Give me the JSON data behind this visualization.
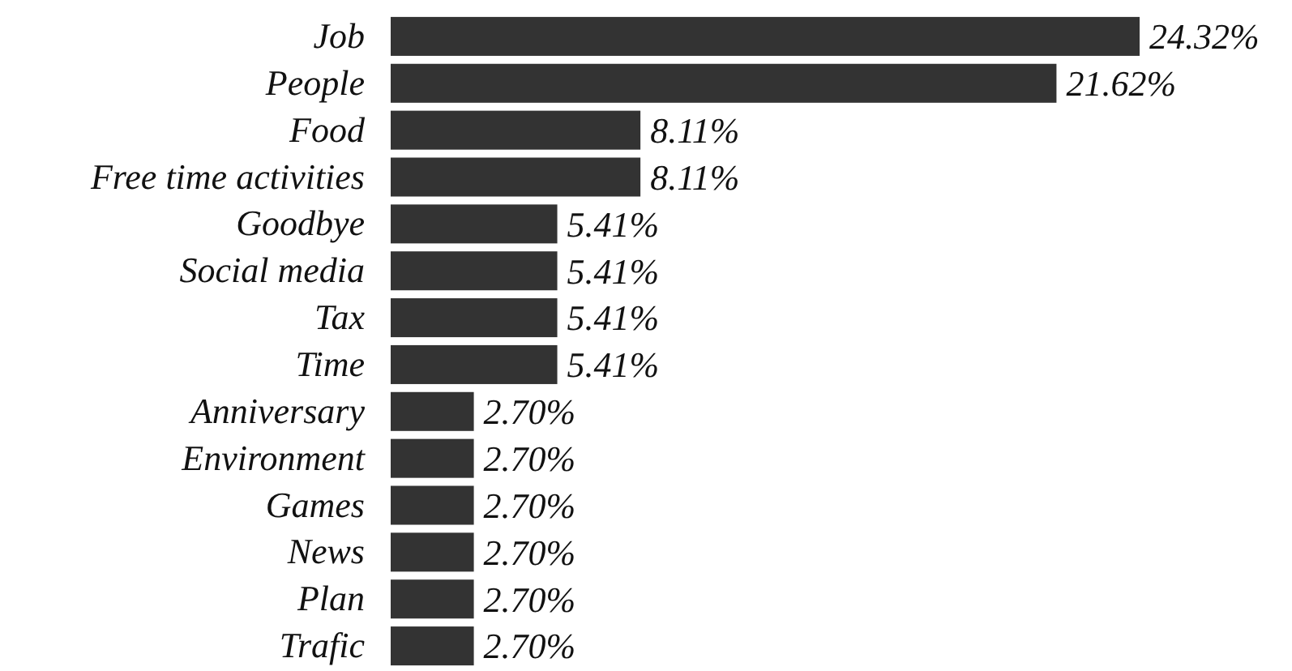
{
  "chart_data": {
    "type": "bar",
    "orientation": "horizontal",
    "categories": [
      "Job",
      "People",
      "Food",
      "Free time activities",
      "Goodbye",
      "Social media",
      "Tax",
      "Time",
      "Anniversary",
      "Environment",
      "Games",
      "News",
      "Plan",
      "Trafic"
    ],
    "values": [
      24.32,
      21.62,
      8.11,
      8.11,
      5.41,
      5.41,
      5.41,
      5.41,
      2.7,
      2.7,
      2.7,
      2.7,
      2.7,
      2.7
    ],
    "value_labels": [
      "24.32%",
      "21.62%",
      "8.11%",
      "8.11%",
      "5.41%",
      "5.41%",
      "5.41%",
      "5.41%",
      "2.70%",
      "2.70%",
      "2.70%",
      "2.70%",
      "2.70%",
      "2.70%"
    ],
    "color": "#333333"
  }
}
